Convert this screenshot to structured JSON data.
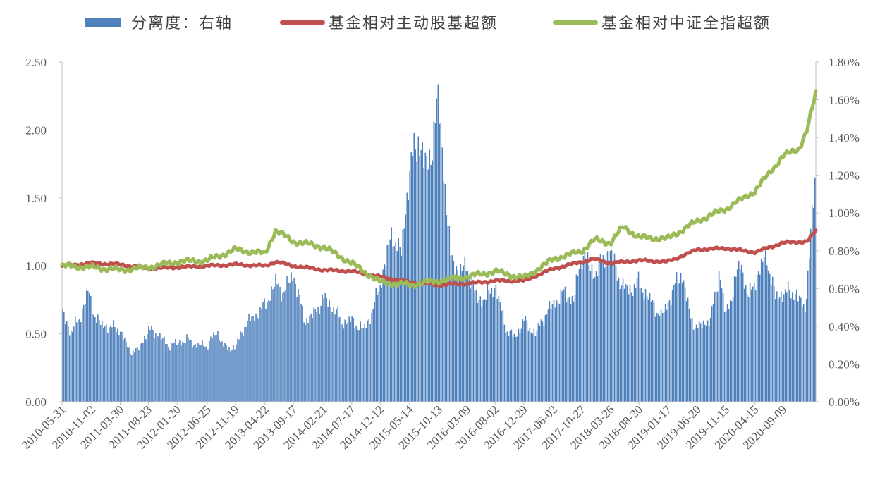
{
  "chart_data": {
    "type": "bar+line",
    "legend": [
      {
        "label": "分离度：右轴",
        "color": "#4f81bd",
        "kind": "bar"
      },
      {
        "label": "基金相对主动股基超额",
        "color": "#c0504d",
        "kind": "line"
      },
      {
        "label": "基金相对中证全指超额",
        "color": "#9bbb59",
        "kind": "line"
      }
    ],
    "legend_position": "top",
    "y_left": {
      "min": 0,
      "max": 2.5,
      "ticks": [
        "0.00",
        "0.50",
        "1.00",
        "1.50",
        "2.00",
        "2.50"
      ]
    },
    "y_right": {
      "min": 0,
      "max": 1.8,
      "ticks": [
        "0.00%",
        "0.20%",
        "0.40%",
        "0.60%",
        "0.80%",
        "1.00%",
        "1.20%",
        "1.40%",
        "1.60%",
        "1.80%"
      ]
    },
    "x_ticks": [
      "2010-05-31",
      "2010-11-02",
      "2011-03-30",
      "2011-08-23",
      "2012-01-20",
      "2012-06-25",
      "2012-11-19",
      "2013-04-22",
      "2013-09-17",
      "2014-02-21",
      "2014-07-17",
      "2014-12-12",
      "2015-05-14",
      "2015-10-13",
      "2016-03-09",
      "2016-08-02",
      "2016-12-29",
      "2017-06-02",
      "2017-10-27",
      "2018-03-26",
      "2018-08-20",
      "2019-01-17",
      "2019-06-20",
      "2019-11-15",
      "2020-04-15",
      "2020-09-09"
    ],
    "x_range": [
      "2010-05-31",
      "2021-02-26"
    ],
    "separation_bars": {
      "axis": "right",
      "dates": [
        "2010-05-31",
        "2010-07-15",
        "2010-08-31",
        "2010-10-15",
        "2010-11-02",
        "2010-12-15",
        "2011-01-31",
        "2011-03-30",
        "2011-05-15",
        "2011-06-30",
        "2011-08-23",
        "2011-10-15",
        "2011-11-30",
        "2012-01-20",
        "2012-03-15",
        "2012-04-30",
        "2012-06-25",
        "2012-08-15",
        "2012-09-30",
        "2012-11-19",
        "2013-01-15",
        "2013-02-28",
        "2013-04-22",
        "2013-06-15",
        "2013-07-31",
        "2013-09-17",
        "2013-11-15",
        "2013-12-31",
        "2014-02-21",
        "2014-04-15",
        "2014-05-31",
        "2014-07-17",
        "2014-09-15",
        "2014-10-31",
        "2014-12-12",
        "2015-02-15",
        "2015-03-31",
        "2015-05-14",
        "2015-06-30",
        "2015-08-15",
        "2015-10-13",
        "2015-12-15",
        "2016-01-31",
        "2016-03-09",
        "2016-04-30",
        "2016-06-15",
        "2016-08-02",
        "2016-09-30",
        "2016-11-15",
        "2016-12-29",
        "2017-02-28",
        "2017-04-15",
        "2017-06-02",
        "2017-07-31",
        "2017-09-15",
        "2017-10-27",
        "2017-12-31",
        "2018-02-15",
        "2018-03-26",
        "2018-05-31",
        "2018-07-15",
        "2018-08-20",
        "2018-10-31",
        "2018-12-15",
        "2019-01-17",
        "2019-03-31",
        "2019-05-15",
        "2019-06-20",
        "2019-08-31",
        "2019-10-15",
        "2019-11-15",
        "2020-01-31",
        "2020-03-15",
        "2020-04-15",
        "2020-06-15",
        "2020-07-31",
        "2020-09-09",
        "2020-11-15",
        "2020-12-31",
        "2021-02-26"
      ],
      "values": [
        0.48,
        0.37,
        0.44,
        0.59,
        0.5,
        0.41,
        0.4,
        0.38,
        0.27,
        0.27,
        0.38,
        0.36,
        0.3,
        0.31,
        0.33,
        0.3,
        0.3,
        0.37,
        0.28,
        0.29,
        0.42,
        0.45,
        0.51,
        0.63,
        0.58,
        0.68,
        0.43,
        0.46,
        0.55,
        0.5,
        0.42,
        0.43,
        0.38,
        0.47,
        0.62,
        0.9,
        0.77,
        1.22,
        1.4,
        1.22,
        1.6,
        0.76,
        0.69,
        0.72,
        0.54,
        0.55,
        0.62,
        0.38,
        0.34,
        0.43,
        0.36,
        0.45,
        0.52,
        0.58,
        0.53,
        0.79,
        0.68,
        0.75,
        0.79,
        0.6,
        0.6,
        0.63,
        0.52,
        0.45,
        0.52,
        0.69,
        0.45,
        0.39,
        0.44,
        0.7,
        0.45,
        0.74,
        0.55,
        0.64,
        0.78,
        0.55,
        0.58,
        0.58,
        0.48,
        1.2
      ]
    },
    "series": [
      {
        "name": "基金相对主动股基超额",
        "axis": "left",
        "dates": [
          "2010-05-31",
          "2010-11-02",
          "2011-03-30",
          "2011-08-23",
          "2012-01-20",
          "2012-06-25",
          "2012-11-19",
          "2013-04-22",
          "2013-06-15",
          "2013-09-17",
          "2014-02-21",
          "2014-07-17",
          "2014-12-12",
          "2015-05-14",
          "2015-10-13",
          "2016-03-09",
          "2016-08-02",
          "2016-12-29",
          "2017-06-02",
          "2017-10-27",
          "2017-12-31",
          "2018-03-26",
          "2018-08-20",
          "2019-01-17",
          "2019-06-20",
          "2019-11-15",
          "2020-04-15",
          "2020-09-09",
          "2021-01-15",
          "2021-02-26"
        ],
        "values": [
          1.0,
          1.02,
          1.01,
          0.98,
          0.99,
          1.0,
          1.01,
          1.0,
          1.03,
          1.0,
          0.97,
          0.96,
          0.92,
          0.88,
          0.86,
          0.87,
          0.89,
          0.89,
          0.98,
          1.03,
          1.05,
          1.02,
          1.04,
          1.03,
          1.12,
          1.13,
          1.1,
          1.17,
          1.18,
          1.26
        ]
      },
      {
        "name": "基金相对中证全指超额",
        "axis": "left",
        "dates": [
          "2010-05-31",
          "2010-11-02",
          "2011-03-30",
          "2011-08-23",
          "2012-01-20",
          "2012-06-25",
          "2012-11-19",
          "2013-04-22",
          "2013-06-15",
          "2013-09-17",
          "2014-02-21",
          "2014-07-17",
          "2014-12-12",
          "2015-05-14",
          "2015-10-13",
          "2016-03-09",
          "2016-08-02",
          "2016-12-29",
          "2017-06-02",
          "2017-10-27",
          "2017-12-31",
          "2018-03-26",
          "2018-05-31",
          "2018-08-20",
          "2019-01-17",
          "2019-06-20",
          "2019-11-15",
          "2020-04-15",
          "2020-09-09",
          "2020-11-30",
          "2021-01-15",
          "2021-02-26"
        ],
        "values": [
          1.0,
          0.99,
          0.97,
          0.99,
          1.03,
          1.04,
          1.12,
          1.09,
          1.26,
          1.18,
          1.14,
          1.02,
          0.88,
          0.86,
          0.89,
          0.92,
          0.96,
          0.91,
          1.05,
          1.11,
          1.19,
          1.17,
          1.29,
          1.21,
          1.2,
          1.33,
          1.42,
          1.55,
          1.81,
          1.86,
          2.01,
          2.27
        ]
      }
    ]
  }
}
